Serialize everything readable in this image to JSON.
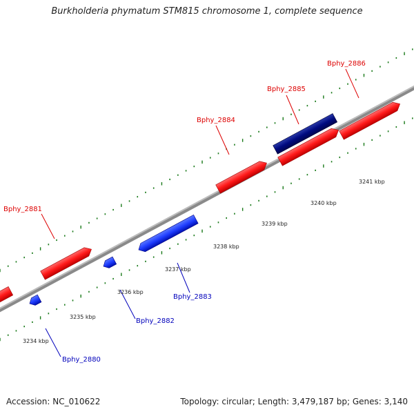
{
  "title": "Burkholderia phymatum STM815 chromosome 1, complete sequence",
  "footer": {
    "accession": "Accession: NC_010622",
    "summary": "Topology: circular; Length: 3,479,187 bp; Genes: 3,140"
  },
  "colors": {
    "backbone": "#8a8a8a",
    "forward_gene": "#ff1a1a",
    "reverse_gene": "#1f3dff",
    "selected_gene": "#000a80",
    "ticks": "#1a7a1a",
    "forward_label": "#dd0000",
    "reverse_label": "#0000bb"
  },
  "scale": {
    "unit": "kbp",
    "labels": [
      {
        "kbp": 3234,
        "text": "3234 kbp"
      },
      {
        "kbp": 3235,
        "text": "3235 kbp"
      },
      {
        "kbp": 3236,
        "text": "3236 kbp"
      },
      {
        "kbp": 3237,
        "text": "3237 kbp"
      },
      {
        "kbp": 3238,
        "text": "3238 kbp"
      },
      {
        "kbp": 3239,
        "text": "3239 kbp"
      },
      {
        "kbp": 3240,
        "text": "3240 kbp"
      },
      {
        "kbp": 3241,
        "text": "3241 kbp"
      }
    ]
  },
  "genes": [
    {
      "id": "Bphy_2880",
      "strand": "reverse",
      "selected": false
    },
    {
      "id": "Bphy_2881",
      "strand": "forward",
      "selected": false
    },
    {
      "id": "Bphy_2882",
      "strand": "reverse",
      "selected": false
    },
    {
      "id": "Bphy_2883",
      "strand": "reverse",
      "selected": false
    },
    {
      "id": "Bphy_2884",
      "strand": "forward",
      "selected": false
    },
    {
      "id": "Bphy_2885",
      "strand": "forward",
      "selected": true
    },
    {
      "id": "Bphy_2886",
      "strand": "forward",
      "selected": false
    }
  ]
}
